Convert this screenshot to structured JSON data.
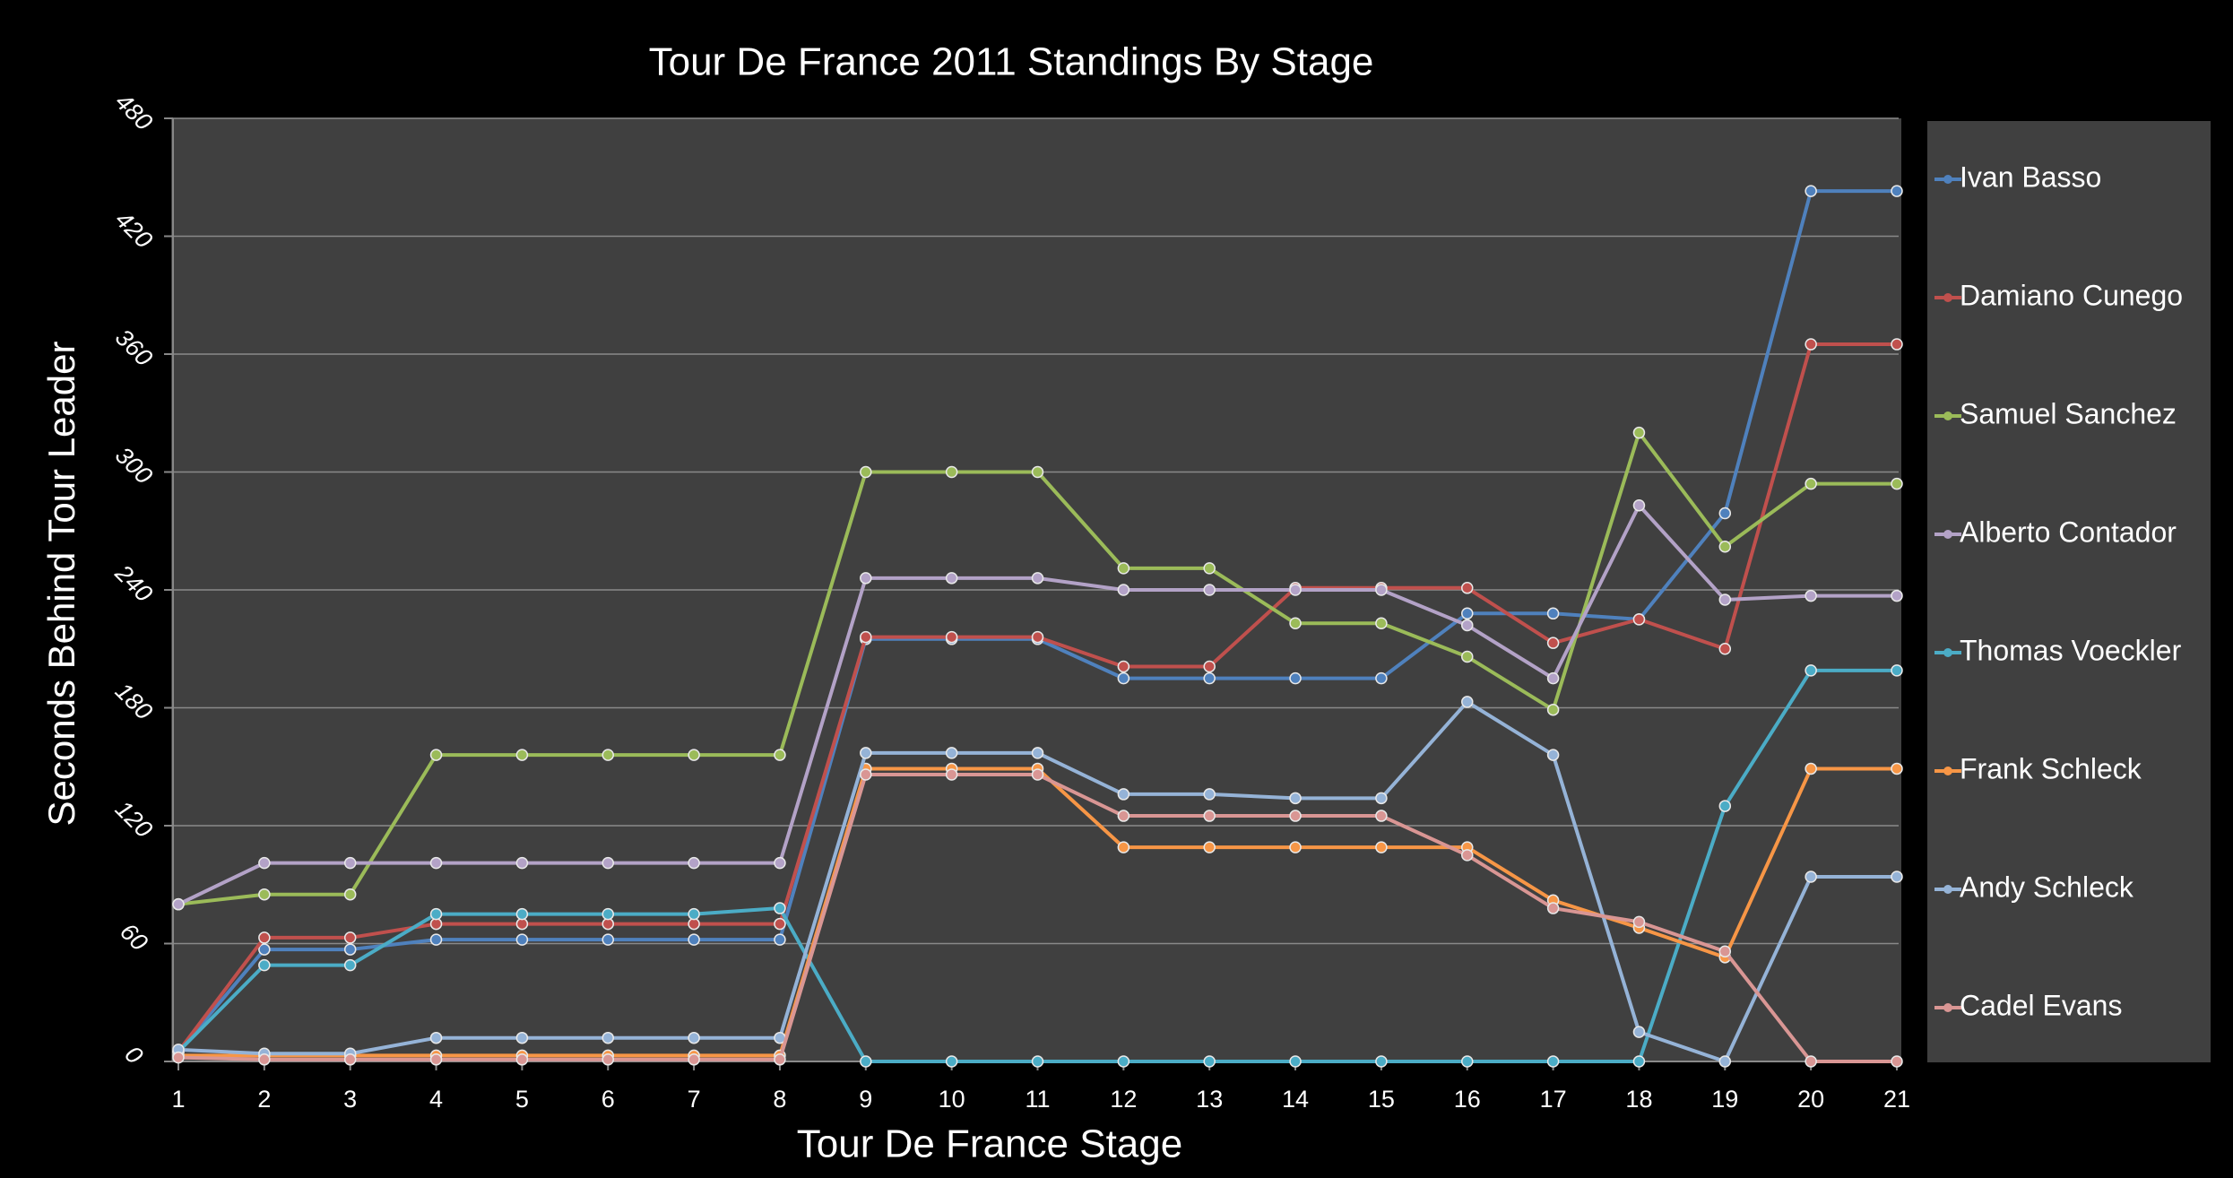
{
  "chart_data": {
    "type": "line",
    "title": "Tour De France 2011 Standings By Stage",
    "x_label": "Tour De France Stage",
    "y_label": "Seconds Behind Tour Leader",
    "categories": [
      "1",
      "2",
      "3",
      "4",
      "5",
      "6",
      "7",
      "8",
      "9",
      "10",
      "11",
      "12",
      "13",
      "14",
      "15",
      "16",
      "17",
      "18",
      "19",
      "20",
      "21"
    ],
    "ylim": [
      0,
      480
    ],
    "yticks": [
      0,
      60,
      120,
      180,
      240,
      300,
      360,
      420,
      480
    ],
    "grid": true,
    "legend": "right",
    "series": [
      {
        "name": "Ivan Basso",
        "color": "#4f81bd",
        "values": [
          5,
          57,
          57,
          62,
          62,
          62,
          62,
          62,
          215,
          215,
          215,
          195,
          195,
          195,
          195,
          228,
          228,
          225,
          279,
          443,
          443
        ]
      },
      {
        "name": "Damiano Cunego",
        "color": "#c0504d",
        "values": [
          5,
          63,
          63,
          70,
          70,
          70,
          70,
          70,
          216,
          216,
          216,
          201,
          201,
          241,
          241,
          241,
          213,
          225,
          210,
          365,
          365
        ]
      },
      {
        "name": "Samuel Sanchez",
        "color": "#9bbb59",
        "values": [
          80,
          85,
          85,
          156,
          156,
          156,
          156,
          156,
          300,
          300,
          300,
          251,
          251,
          223,
          223,
          206,
          179,
          320,
          262,
          294,
          294
        ]
      },
      {
        "name": "Alberto Contador",
        "color": "#b3a2c7",
        "values": [
          80,
          101,
          101,
          101,
          101,
          101,
          101,
          101,
          246,
          246,
          246,
          240,
          240,
          240,
          240,
          222,
          195,
          283,
          235,
          237,
          237
        ]
      },
      {
        "name": "Thomas Voeckler",
        "color": "#4bacc6",
        "values": [
          5,
          49,
          49,
          75,
          75,
          75,
          75,
          78,
          0,
          0,
          0,
          0,
          0,
          0,
          0,
          0,
          0,
          0,
          130,
          199,
          199
        ]
      },
      {
        "name": "Frank Schleck",
        "color": "#f79646",
        "values": [
          3,
          3,
          3,
          3,
          3,
          3,
          3,
          3,
          149,
          149,
          149,
          109,
          109,
          109,
          109,
          109,
          82,
          68,
          53,
          149,
          149
        ]
      },
      {
        "name": "Andy Schleck",
        "color": "#95b3d7",
        "values": [
          6,
          4,
          4,
          12,
          12,
          12,
          12,
          12,
          157,
          157,
          157,
          136,
          136,
          134,
          134,
          183,
          156,
          15,
          0,
          94,
          94
        ]
      },
      {
        "name": "Cadel Evans",
        "color": "#d99694",
        "values": [
          2,
          1,
          1,
          1,
          1,
          1,
          1,
          1,
          146,
          146,
          146,
          125,
          125,
          125,
          125,
          105,
          78,
          71,
          56,
          0,
          0
        ]
      }
    ]
  }
}
